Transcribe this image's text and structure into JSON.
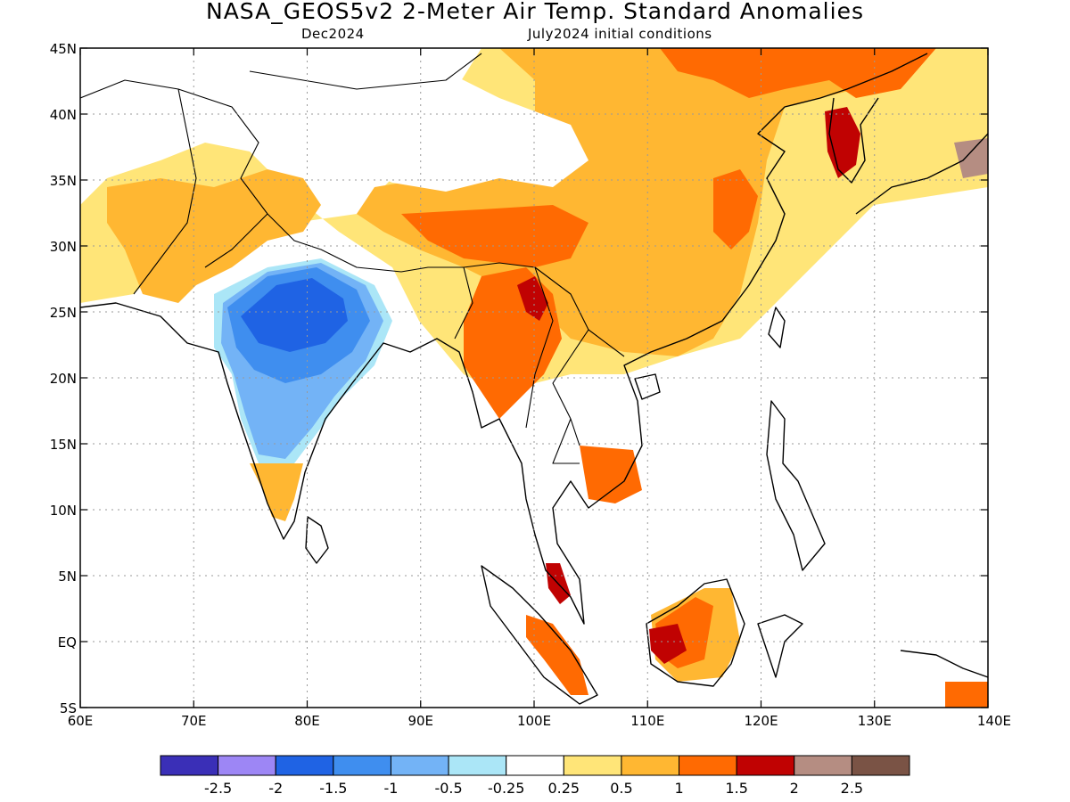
{
  "title": "NASA_GEOS5v2 2-Meter Air Temp. Standard Anomalies",
  "subtitle_left": "Dec2024",
  "subtitle_right": "July2024 initial conditions",
  "chart_data": {
    "type": "map",
    "lon_range": [
      60,
      140
    ],
    "lat_range": [
      -5,
      45
    ],
    "lon_ticks": [
      {
        "value": 60,
        "label": "60E"
      },
      {
        "value": 70,
        "label": "70E"
      },
      {
        "value": 80,
        "label": "80E"
      },
      {
        "value": 90,
        "label": "90E"
      },
      {
        "value": 100,
        "label": "100E"
      },
      {
        "value": 110,
        "label": "110E"
      },
      {
        "value": 120,
        "label": "120E"
      },
      {
        "value": 130,
        "label": "130E"
      },
      {
        "value": 140,
        "label": "140E"
      }
    ],
    "lat_ticks": [
      {
        "value": 45,
        "label": "45N"
      },
      {
        "value": 40,
        "label": "40N"
      },
      {
        "value": 35,
        "label": "35N"
      },
      {
        "value": 30,
        "label": "30N"
      },
      {
        "value": 25,
        "label": "25N"
      },
      {
        "value": 20,
        "label": "20N"
      },
      {
        "value": 15,
        "label": "15N"
      },
      {
        "value": 10,
        "label": "10N"
      },
      {
        "value": 5,
        "label": "5N"
      },
      {
        "value": 0,
        "label": "EQ"
      },
      {
        "value": -5,
        "label": "5S"
      }
    ],
    "grid": true,
    "colorbar": {
      "colors": [
        "#3a2fb7",
        "#9d86f5",
        "#1f63e4",
        "#3f8eef",
        "#73b3f6",
        "#abe6f7",
        "#ffffff",
        "#ffe578",
        "#ffb732",
        "#ff6a02",
        "#c00202",
        "#b58d82",
        "#7a5345"
      ],
      "labels": [
        "-2.5",
        "-2",
        "-1.5",
        "-1",
        "-0.5",
        "-0.25",
        "0.25",
        "0.5",
        "1",
        "1.5",
        "2",
        "2.5"
      ]
    },
    "regions": [
      {
        "name": "north-india-cold-core",
        "level": -1.5,
        "lon": [
          73,
          87
        ],
        "lat": [
          19,
          27
        ]
      },
      {
        "name": "central-india-cold",
        "level": -1,
        "lon": [
          74,
          86
        ],
        "lat": [
          14,
          25
        ]
      },
      {
        "name": "china-warm",
        "level": 1,
        "lon": [
          96,
          122
        ],
        "lat": [
          22,
          40
        ]
      },
      {
        "name": "northeast-china-warm",
        "level": 1.5,
        "lon": [
          110,
          130
        ],
        "lat": [
          40,
          45
        ]
      },
      {
        "name": "korea-hot",
        "level": 2,
        "lon": [
          126,
          129
        ],
        "lat": [
          34,
          40
        ]
      },
      {
        "name": "borneo-warm",
        "level": 1.5,
        "lon": [
          110,
          118
        ],
        "lat": [
          -3,
          6
        ]
      }
    ]
  }
}
